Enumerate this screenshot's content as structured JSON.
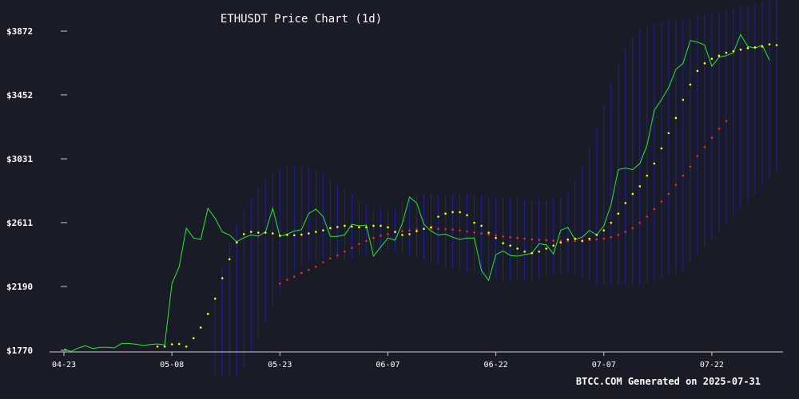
{
  "chart_data": {
    "type": "line",
    "title": "ETHUSDT Price Chart (1d)",
    "footer": "BTCC.COM Generated on 2025-07-31",
    "y_ticks": [
      "$3872",
      "$3452",
      "$3031",
      "$2611",
      "$2190",
      "$1770"
    ],
    "y_tick_values": [
      3872,
      3452,
      3031,
      2611,
      2190,
      1770
    ],
    "ylim": [
      1770,
      3872
    ],
    "x_ticks": [
      "04-23",
      "05-08",
      "05-23",
      "06-07",
      "06-22",
      "07-07",
      "07-22"
    ],
    "x_tick_values": [
      "2025-04-23",
      "2025-05-08",
      "2025-05-23",
      "2025-06-07",
      "2025-06-22",
      "2025-07-07",
      "2025-07-22"
    ],
    "xlim": [
      "2025-04-23",
      "2025-07-31"
    ],
    "grid": false,
    "colors": {
      "background": "#191c26",
      "price": "#2ee62e",
      "short_ma": "#ffff00",
      "long_ma": "#ff2222",
      "band": "#2222aa",
      "axis": "#cccccc",
      "text": "#ffffff"
    },
    "price": {
      "start": "2025-04-23",
      "values": [
        1780,
        1762,
        1785,
        1800,
        1782,
        1790,
        1790,
        1786,
        1815,
        1815,
        1810,
        1802,
        1808,
        1812,
        1805,
        2210,
        2320,
        2575,
        2510,
        2500,
        2705,
        2640,
        2550,
        2530,
        2485,
        2512,
        2530,
        2522,
        2550,
        2705,
        2520,
        2535,
        2555,
        2565,
        2670,
        2700,
        2650,
        2520,
        2520,
        2530,
        2600,
        2590,
        2595,
        2390,
        2450,
        2510,
        2495,
        2605,
        2780,
        2740,
        2600,
        2555,
        2530,
        2535,
        2515,
        2500,
        2510,
        2510,
        2295,
        2230,
        2400,
        2425,
        2395,
        2390,
        2400,
        2410,
        2472,
        2465,
        2405,
        2560,
        2580,
        2500,
        2515,
        2560,
        2530,
        2590,
        2730,
        2960,
        2970,
        2960,
        3000,
        3120,
        3350,
        3420,
        3500,
        3620,
        3660,
        3810,
        3800,
        3780,
        3640,
        3700,
        3710,
        3730,
        3850,
        3770,
        3760,
        3780,
        3680
      ]
    },
    "ma_short": {
      "start": "2025-05-06",
      "values": [
        1795,
        1795,
        1810,
        1812,
        1795,
        1850,
        1920,
        2010,
        2110,
        2245,
        2370,
        2480,
        2535,
        2550,
        2545,
        2545,
        2540,
        2525,
        2530,
        2528,
        2532,
        2540,
        2550,
        2560,
        2575,
        2582,
        2590,
        2585,
        2580,
        2580,
        2590,
        2590,
        2580,
        2550,
        2530,
        2535,
        2555,
        2570,
        2580,
        2650,
        2670,
        2680,
        2680,
        2660,
        2610,
        2590,
        2545,
        2510,
        2475,
        2460,
        2440,
        2420,
        2410,
        2420,
        2440,
        2460,
        2480,
        2500,
        2505,
        2490,
        2505,
        2530,
        2560,
        2610,
        2670,
        2740,
        2800,
        2850,
        2920,
        3000,
        3100,
        3200,
        3300,
        3420,
        3520,
        3610,
        3660,
        3690,
        3710,
        3730,
        3740,
        3750,
        3760,
        3765,
        3770,
        3785,
        3780
      ]
    },
    "ma_long": {
      "start": "2025-05-23",
      "values": [
        2210,
        2235,
        2255,
        2280,
        2300,
        2320,
        2350,
        2375,
        2395,
        2420,
        2445,
        2470,
        2490,
        2510,
        2525,
        2535,
        2548,
        2555,
        2560,
        2565,
        2570,
        2572,
        2570,
        2568,
        2565,
        2560,
        2553,
        2546,
        2540,
        2533,
        2527,
        2520,
        2515,
        2510,
        2505,
        2500,
        2497,
        2495,
        2492,
        2490,
        2490,
        2492,
        2495,
        2497,
        2500,
        2505,
        2515,
        2530,
        2550,
        2575,
        2610,
        2650,
        2700,
        2750,
        2800,
        2860,
        2920,
        2980,
        3050,
        3110,
        3170,
        3230,
        3280
      ]
    },
    "band": {
      "start": "2025-05-14",
      "upper": [
        2120,
        2320,
        2480,
        2610,
        2700,
        2780,
        2840,
        2890,
        2940,
        2970,
        2990,
        2990,
        2980,
        2970,
        2960,
        2930,
        2890,
        2860,
        2830,
        2800,
        2760,
        2720,
        2700,
        2700,
        2700,
        2700,
        2750,
        2780,
        2800,
        2800,
        2800,
        2790,
        2790,
        2800,
        2800,
        2800,
        2790,
        2790,
        2780,
        2780,
        2780,
        2770,
        2770,
        2760,
        2760,
        2760,
        2760,
        2770,
        2780,
        2820,
        2890,
        2990,
        3110,
        3240,
        3380,
        3520,
        3650,
        3760,
        3840,
        3880,
        3900,
        3920,
        3930,
        3940,
        3940,
        3950,
        3960,
        3970,
        3980,
        3990,
        4000,
        4010,
        4020,
        4030,
        4040,
        4050,
        4060,
        4070,
        4080
      ],
      "lower": [
        1600,
        1600,
        1600,
        1600,
        1650,
        1750,
        1850,
        1950,
        2050,
        2150,
        2250,
        2300,
        2330,
        2350,
        2360,
        2370,
        2370,
        2370,
        2370,
        2380,
        2390,
        2400,
        2410,
        2420,
        2430,
        2420,
        2410,
        2400,
        2380,
        2370,
        2350,
        2340,
        2320,
        2310,
        2300,
        2290,
        2280,
        2260,
        2250,
        2240,
        2230,
        2220,
        2220,
        2220,
        2230,
        2240,
        2260,
        2270,
        2280,
        2280,
        2270,
        2250,
        2220,
        2200,
        2200,
        2200,
        2200,
        2200,
        2200,
        2200,
        2210,
        2230,
        2250,
        2270,
        2280,
        2300,
        2350,
        2400,
        2450,
        2500,
        2550,
        2600,
        2650,
        2700,
        2750,
        2800,
        2850,
        2900,
        2950
      ]
    }
  }
}
